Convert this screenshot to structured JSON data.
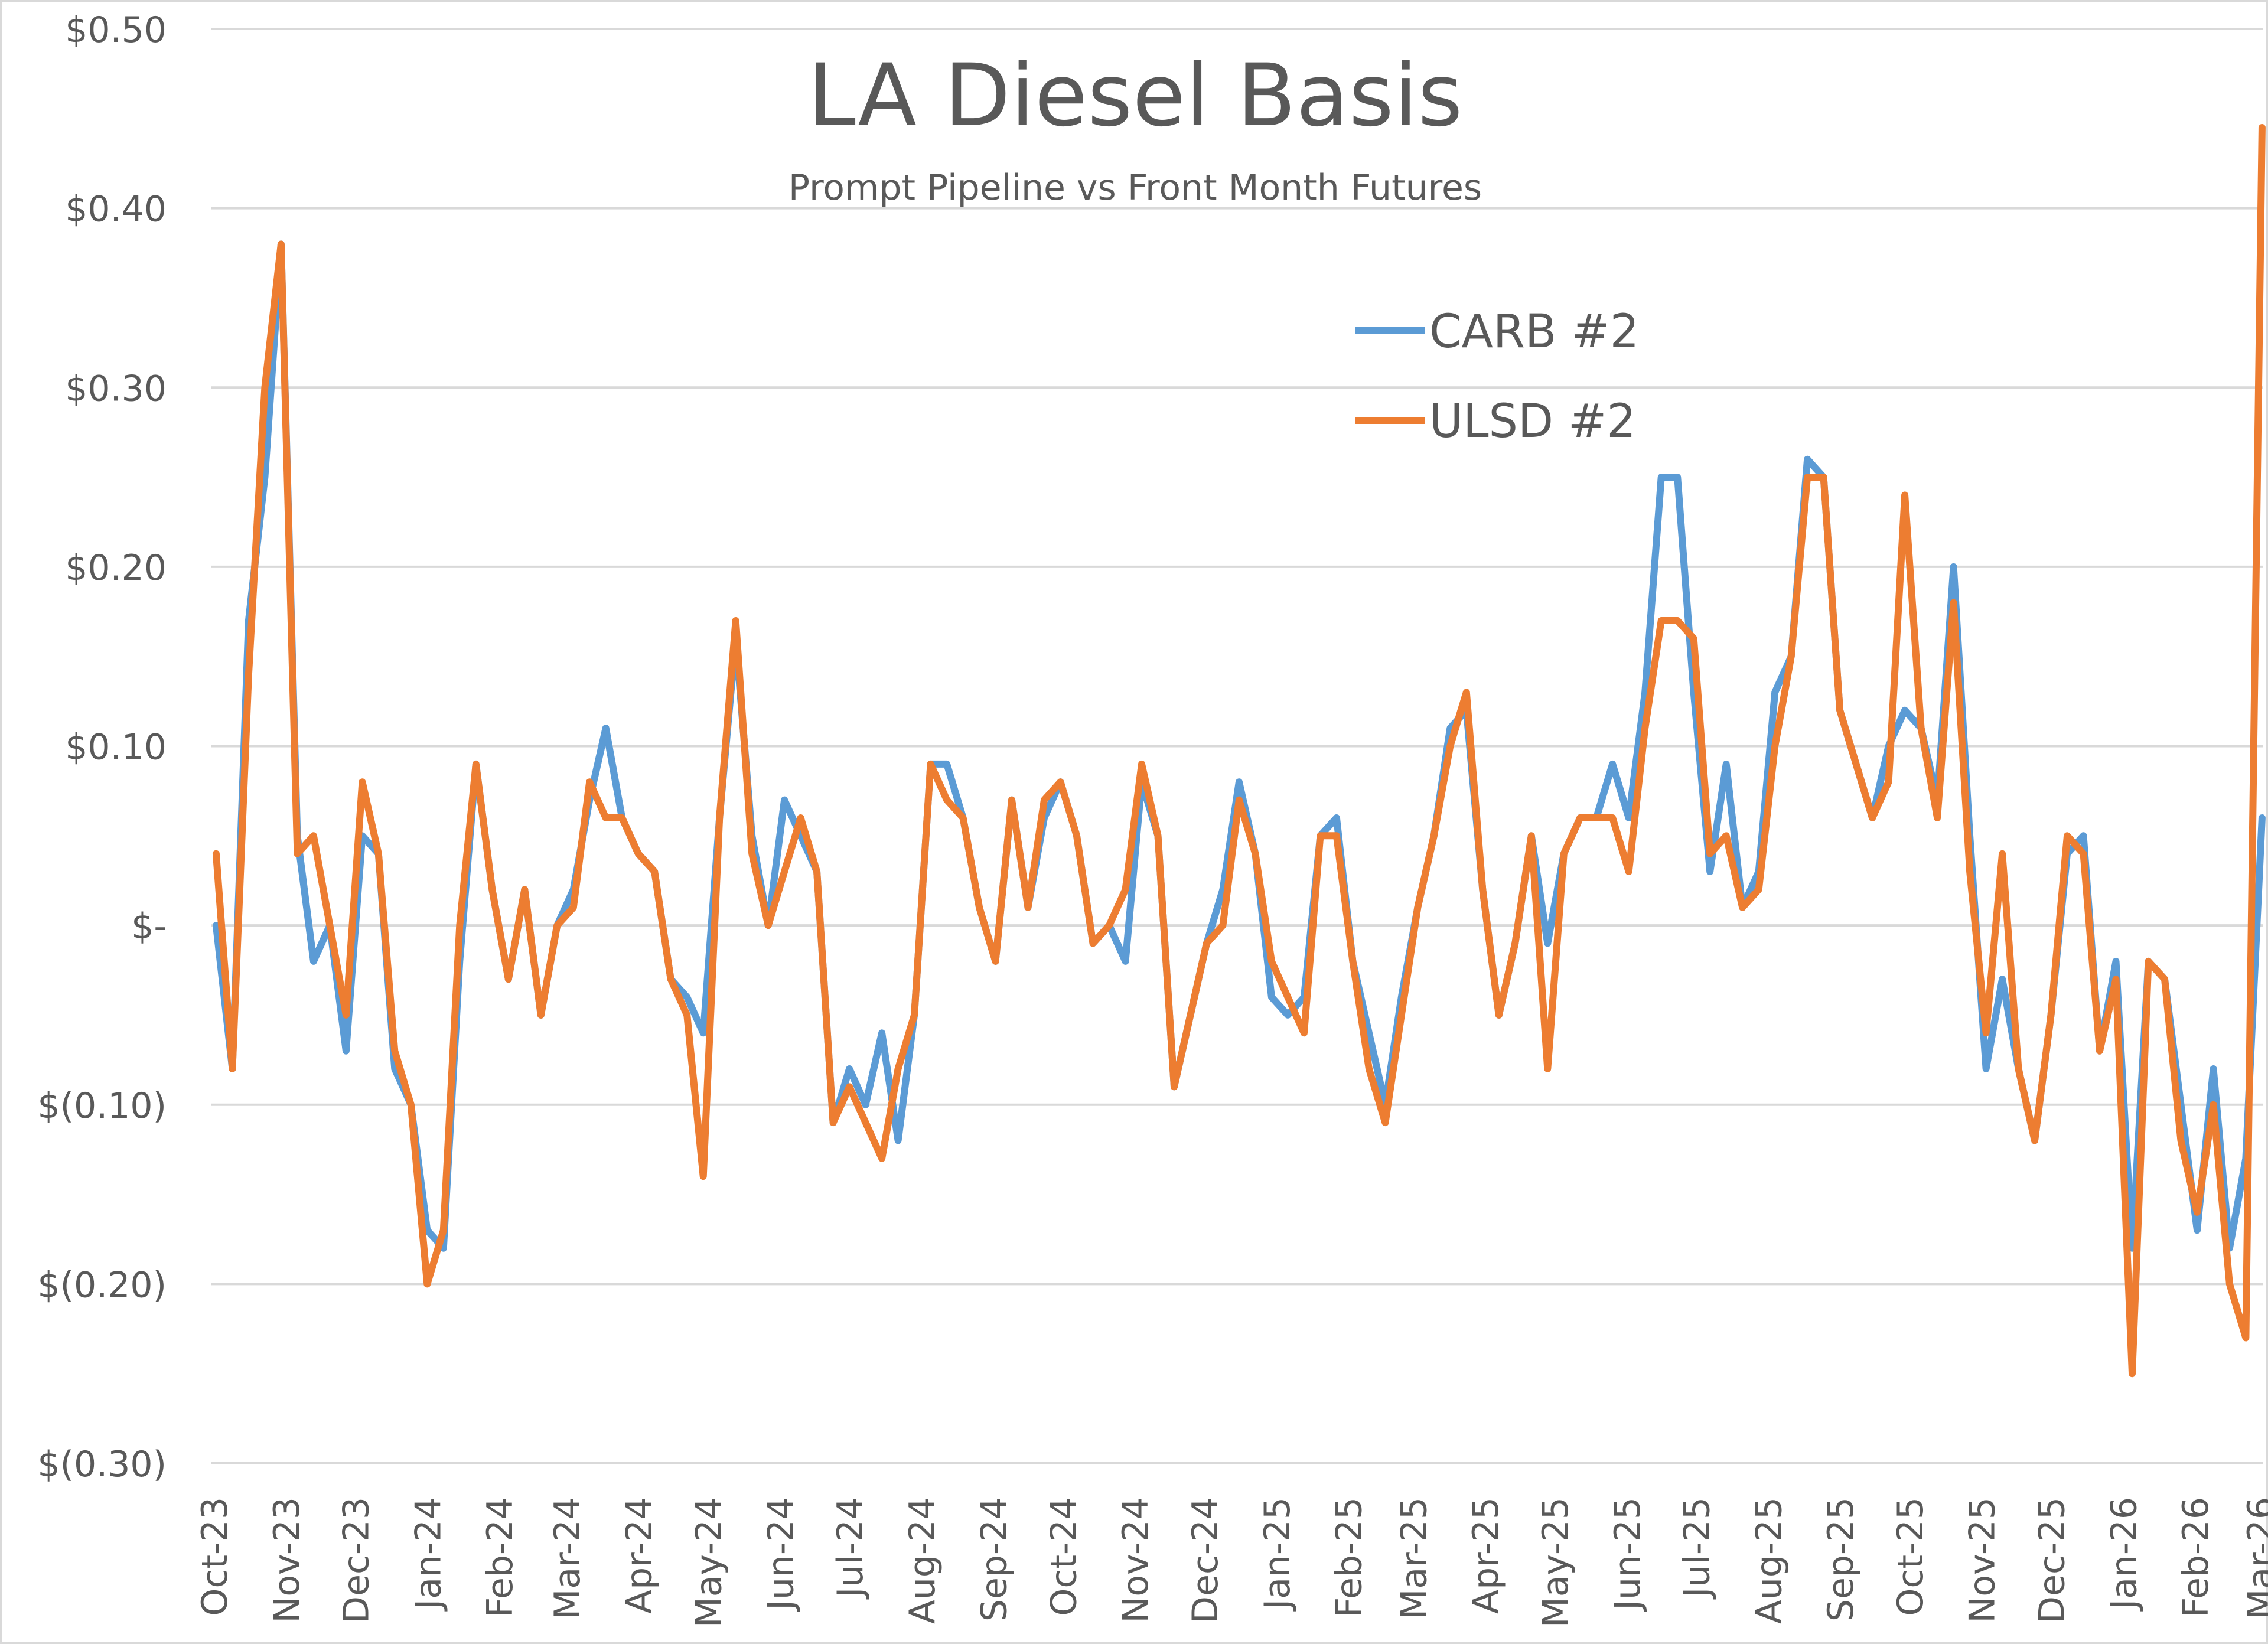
{
  "chart_data": {
    "type": "line",
    "title": "LA Diesel Basis",
    "subtitle": "Prompt Pipeline vs Front Month Futures",
    "xlabel": "",
    "ylabel": "",
    "ylim": [
      -0.3,
      0.5
    ],
    "yticks": [
      0.5,
      0.4,
      0.3,
      0.2,
      0.1,
      0.0,
      -0.1,
      -0.2,
      -0.3
    ],
    "ytick_labels": [
      "$0.50",
      "$0.40",
      "$0.30",
      "$0.20",
      "$0.10",
      "$-",
      "$(0.10)",
      "$(0.20)",
      "$(0.30)"
    ],
    "xlim": [
      "2023-10-01",
      "2026-03-01"
    ],
    "xticks": [
      "2023-10-01",
      "2023-11-01",
      "2023-12-01",
      "2024-01-01",
      "2024-02-01",
      "2024-03-01",
      "2024-04-01",
      "2024-05-01",
      "2024-06-01",
      "2024-07-01",
      "2024-08-01",
      "2024-09-01",
      "2024-10-01",
      "2024-11-01",
      "2024-12-01",
      "2025-01-01",
      "2025-02-01",
      "2025-03-01",
      "2025-04-01",
      "2025-05-01",
      "2025-06-01",
      "2025-07-01",
      "2025-08-01",
      "2025-09-01",
      "2025-10-01",
      "2025-11-01",
      "2025-12-01",
      "2026-01-01",
      "2026-02-01",
      "2026-03-01"
    ],
    "xtick_labels": [
      "Oct-23",
      "Nov-23",
      "Dec-23",
      "Jan-24",
      "Feb-24",
      "Mar-24",
      "Apr-24",
      "May-24",
      "Jun-24",
      "Jul-24",
      "Aug-24",
      "Sep-24",
      "Oct-24",
      "Nov-24",
      "Dec-24",
      "Jan-25",
      "Feb-25",
      "Mar-25",
      "Apr-25",
      "May-25",
      "Jun-25",
      "Jul-25",
      "Aug-25",
      "Sep-25",
      "Oct-25",
      "Nov-25",
      "Dec-25",
      "Jan-26",
      "Feb-26",
      "Mar-26"
    ],
    "grid": "horizontal",
    "legend_placement": "top-center",
    "x": [
      "2023-10-02",
      "2023-10-09",
      "2023-10-16",
      "2023-10-23",
      "2023-10-30",
      "2023-11-06",
      "2023-11-13",
      "2023-11-20",
      "2023-11-27",
      "2023-12-04",
      "2023-12-11",
      "2023-12-18",
      "2023-12-25",
      "2024-01-01",
      "2024-01-08",
      "2024-01-15",
      "2024-01-22",
      "2024-01-29",
      "2024-02-05",
      "2024-02-12",
      "2024-02-19",
      "2024-02-26",
      "2024-03-04",
      "2024-03-11",
      "2024-03-18",
      "2024-03-25",
      "2024-04-01",
      "2024-04-08",
      "2024-04-15",
      "2024-04-22",
      "2024-04-29",
      "2024-05-06",
      "2024-05-13",
      "2024-05-20",
      "2024-05-27",
      "2024-06-03",
      "2024-06-10",
      "2024-06-17",
      "2024-06-24",
      "2024-07-01",
      "2024-07-08",
      "2024-07-15",
      "2024-07-22",
      "2024-07-29",
      "2024-08-05",
      "2024-08-12",
      "2024-08-19",
      "2024-08-26",
      "2024-09-02",
      "2024-09-09",
      "2024-09-16",
      "2024-09-23",
      "2024-09-30",
      "2024-10-07",
      "2024-10-14",
      "2024-10-21",
      "2024-10-28",
      "2024-11-04",
      "2024-11-11",
      "2024-11-18",
      "2024-11-25",
      "2024-12-02",
      "2024-12-09",
      "2024-12-16",
      "2024-12-23",
      "2024-12-30",
      "2025-01-06",
      "2025-01-13",
      "2025-01-20",
      "2025-01-27",
      "2025-02-03",
      "2025-02-10",
      "2025-02-17",
      "2025-02-24",
      "2025-03-03",
      "2025-03-10",
      "2025-03-17",
      "2025-03-24",
      "2025-03-31",
      "2025-04-07",
      "2025-04-14",
      "2025-04-21",
      "2025-04-28",
      "2025-05-05",
      "2025-05-12",
      "2025-05-19",
      "2025-05-26",
      "2025-06-02",
      "2025-06-09",
      "2025-06-16",
      "2025-06-23",
      "2025-06-30",
      "2025-07-07",
      "2025-07-14",
      "2025-07-21",
      "2025-07-28",
      "2025-08-04",
      "2025-08-11",
      "2025-08-18",
      "2025-08-25",
      "2025-09-01",
      "2025-09-08",
      "2025-09-15",
      "2025-09-22",
      "2025-09-29",
      "2025-10-06",
      "2025-10-13",
      "2025-10-20",
      "2025-10-27",
      "2025-11-03",
      "2025-11-10",
      "2025-11-17",
      "2025-11-24",
      "2025-12-01",
      "2025-12-08",
      "2025-12-15",
      "2025-12-22",
      "2025-12-29",
      "2026-01-05",
      "2026-01-12",
      "2026-01-19",
      "2026-01-26",
      "2026-02-02",
      "2026-02-09",
      "2026-02-16",
      "2026-02-23",
      "2026-03-02"
    ],
    "series": [
      {
        "name": "CARB #2",
        "color": "#5B9BD5",
        "values": [
          0.0,
          -0.08,
          0.17,
          0.25,
          0.38,
          0.05,
          -0.02,
          0.0,
          -0.07,
          0.05,
          0.04,
          -0.08,
          -0.1,
          -0.17,
          -0.18,
          -0.02,
          0.09,
          0.02,
          -0.03,
          0.02,
          -0.05,
          0.0,
          0.02,
          0.07,
          0.11,
          0.06,
          0.04,
          0.03,
          -0.03,
          -0.04,
          -0.06,
          0.06,
          0.16,
          0.05,
          0.0,
          0.07,
          0.05,
          0.03,
          -0.11,
          -0.08,
          -0.1,
          -0.06,
          -0.12,
          -0.05,
          0.09,
          0.09,
          0.06,
          0.01,
          -0.02,
          0.07,
          0.01,
          0.06,
          0.08,
          0.05,
          -0.01,
          0.0,
          -0.02,
          0.08,
          0.05,
          -0.09,
          -0.05,
          -0.01,
          0.02,
          0.08,
          0.04,
          -0.04,
          -0.05,
          -0.04,
          0.05,
          0.06,
          -0.02,
          -0.06,
          -0.1,
          -0.04,
          0.01,
          0.05,
          0.11,
          0.12,
          0.02,
          -0.05,
          -0.01,
          0.05,
          -0.01,
          0.04,
          0.06,
          0.06,
          0.09,
          0.06,
          0.13,
          0.25,
          0.25,
          0.13,
          0.03,
          0.09,
          0.01,
          0.03,
          0.13,
          0.15,
          0.26,
          0.25,
          0.12,
          0.09,
          0.06,
          0.1,
          0.12,
          0.11,
          0.07,
          0.2,
          0.05,
          -0.08,
          -0.03,
          -0.08,
          -0.12,
          -0.05,
          0.04,
          0.05,
          -0.07,
          -0.02,
          -0.18,
          -0.02,
          -0.03,
          -0.1,
          -0.17,
          -0.08,
          -0.18,
          -0.13,
          0.06
        ]
      },
      {
        "name": "ULSD #2",
        "color": "#ED7D31",
        "values": [
          0.04,
          -0.08,
          0.14,
          0.3,
          0.38,
          0.04,
          0.05,
          0.0,
          -0.05,
          0.08,
          0.04,
          -0.07,
          -0.1,
          -0.2,
          -0.17,
          0.0,
          0.09,
          0.02,
          -0.03,
          0.02,
          -0.05,
          0.0,
          0.01,
          0.08,
          0.06,
          0.06,
          0.04,
          0.03,
          -0.03,
          -0.05,
          -0.14,
          0.06,
          0.17,
          0.04,
          0.0,
          0.03,
          0.06,
          0.03,
          -0.11,
          -0.09,
          -0.11,
          -0.13,
          -0.08,
          -0.05,
          0.09,
          0.07,
          0.06,
          0.01,
          -0.02,
          0.07,
          0.01,
          0.07,
          0.08,
          0.05,
          -0.01,
          0.0,
          0.02,
          0.09,
          0.05,
          -0.09,
          -0.05,
          -0.01,
          0.0,
          0.07,
          0.04,
          -0.02,
          -0.04,
          -0.06,
          0.05,
          0.05,
          -0.02,
          -0.08,
          -0.11,
          -0.05,
          0.01,
          0.05,
          0.1,
          0.13,
          0.02,
          -0.05,
          -0.01,
          0.05,
          -0.08,
          0.04,
          0.06,
          0.06,
          0.06,
          0.03,
          0.11,
          0.17,
          0.17,
          0.16,
          0.04,
          0.05,
          0.01,
          0.02,
          0.1,
          0.15,
          0.25,
          0.25,
          0.12,
          0.09,
          0.06,
          0.08,
          0.24,
          0.11,
          0.06,
          0.18,
          0.03,
          -0.06,
          0.04,
          -0.08,
          -0.12,
          -0.05,
          0.05,
          0.04,
          -0.07,
          -0.03,
          -0.25,
          -0.02,
          -0.03,
          -0.12,
          -0.16,
          -0.1,
          -0.2,
          -0.23,
          0.445
        ]
      }
    ]
  }
}
